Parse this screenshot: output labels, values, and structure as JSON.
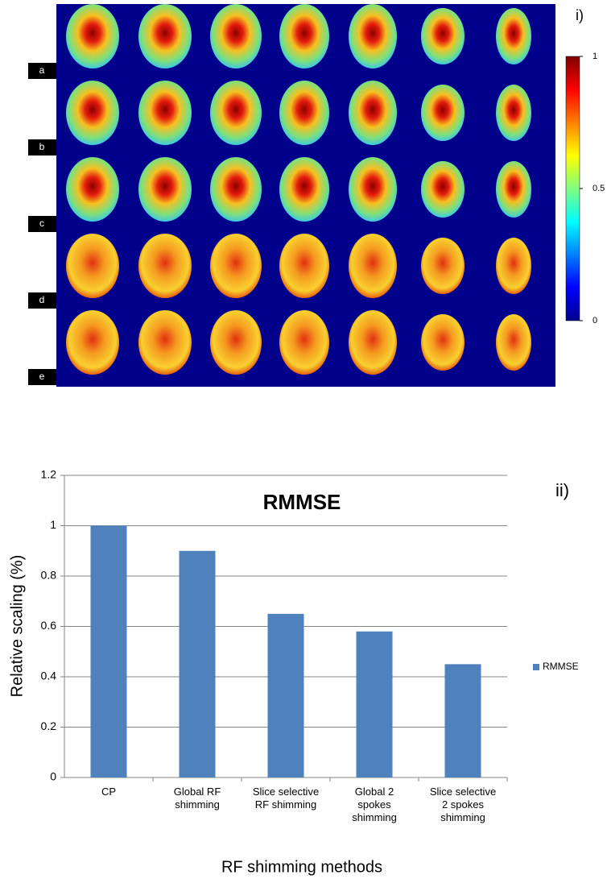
{
  "chart_data": [
    {
      "type": "heatmap",
      "panel_label": "i)",
      "row_labels": [
        "a",
        "b",
        "c",
        "d",
        "e"
      ],
      "colorbar": {
        "clim": [
          0,
          1
        ],
        "ticks": [
          0,
          0.5,
          1
        ],
        "colormap": "jet"
      }
    },
    {
      "type": "bar",
      "title": "RMMSE",
      "panel_label": "ii)",
      "x_label": "RF shimming methods",
      "y_label": "Relative scaling (%)",
      "categories": [
        "CP",
        "Global RF\nshimming",
        "Slice selective\nRF shimming",
        "Global 2\nspokes\nshimming",
        "Slice selective\n2 spokes\nshimming"
      ],
      "series": [
        {
          "name": "RMMSE",
          "color": "#4f81bd",
          "values": [
            1,
            0.9,
            0.65,
            0.58,
            0.45
          ]
        }
      ],
      "ylim": [
        0,
        1.2
      ],
      "yticks": [
        0,
        0.2,
        0.4,
        0.6,
        0.8,
        1,
        1.2
      ],
      "grid": true,
      "legend": "right"
    }
  ]
}
